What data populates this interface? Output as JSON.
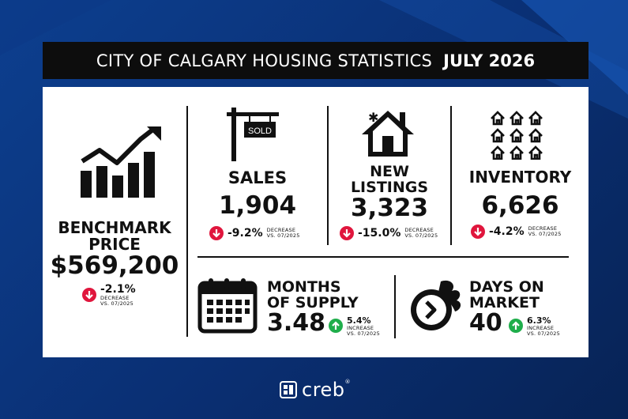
{
  "header": {
    "title": "CITY OF CALGARY HOUSING STATISTICS",
    "period": "JULY 2026"
  },
  "benchmark": {
    "label_line1": "BENCHMARK",
    "label_line2": "PRICE",
    "value": "$569,200",
    "change": "-2.1%",
    "direction_line1": "DECREASE",
    "direction_line2": "VS. 07/2025",
    "trend": "down"
  },
  "sales": {
    "label": "SALES",
    "value": "1,904",
    "change": "-9.2%",
    "direction_line1": "DECREASE",
    "direction_line2": "VS. 07/2025",
    "sign_text": "SOLD"
  },
  "new_listings": {
    "label_line1": "NEW",
    "label_line2": "LISTINGS",
    "value": "3,323",
    "change": "-15.0%",
    "direction_line1": "DECREASE",
    "direction_line2": "VS. 07/2025"
  },
  "inventory": {
    "label": "INVENTORY",
    "value": "6,626",
    "change": "-4.2%",
    "direction_line1": "DECREASE",
    "direction_line2": "VS. 07/2025"
  },
  "months_of_supply": {
    "label_line1": "MONTHS",
    "label_line2": "OF SUPPLY",
    "value": "3.48",
    "change": "5.4%",
    "direction_line1": "INCREASE",
    "direction_line2": "VS. 07/2025",
    "trend": "up"
  },
  "days_on_market": {
    "label_line1": "DAYS ON",
    "label_line2": "MARKET",
    "value": "40",
    "change": "6.3%",
    "direction_line1": "INCREASE",
    "direction_line2": "VS. 07/2025",
    "trend": "up"
  },
  "brand": {
    "name": "creb",
    "mark": "®"
  },
  "colors": {
    "down": "#e0163d",
    "up": "#1fae4b",
    "background": "#0a2f73"
  },
  "icons": [
    "bar-chart-trend-icon",
    "sold-sign-icon",
    "house-icon",
    "houses-grid-icon",
    "calendar-icon",
    "stopwatch-icon"
  ]
}
